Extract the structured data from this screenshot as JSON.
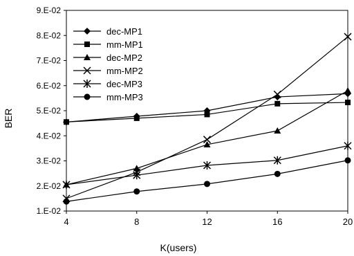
{
  "chart_data": {
    "type": "line",
    "title": "",
    "xlabel": "K(users)",
    "ylabel": "BER",
    "x": [
      4,
      8,
      12,
      16,
      20
    ],
    "x_ticks": [
      "4",
      "8",
      "12",
      "16",
      "20"
    ],
    "ylim": [
      0.01,
      0.09
    ],
    "y_ticks": [
      "1.E-02",
      "2.E-02",
      "3.E-02",
      "4.E-02",
      "5.E-02",
      "6.E-02",
      "7.E-02",
      "8.E-02",
      "9.E-02"
    ],
    "grid": false,
    "legend_position": "top-left",
    "series": [
      {
        "name": "dec-MP1",
        "marker": "diamond",
        "values": [
          0.0455,
          0.0478,
          0.05,
          0.0555,
          0.0568
        ]
      },
      {
        "name": "mm-MP1",
        "marker": "square",
        "values": [
          0.0455,
          0.047,
          0.0485,
          0.0528,
          0.0533
        ]
      },
      {
        "name": "dec-MP2",
        "marker": "triangle",
        "values": [
          0.0205,
          0.027,
          0.0365,
          0.042,
          0.058
        ]
      },
      {
        "name": "mm-MP2",
        "marker": "x",
        "values": [
          0.015,
          0.0255,
          0.0385,
          0.0565,
          0.0795
        ]
      },
      {
        "name": "dec-MP3",
        "marker": "star",
        "values": [
          0.0205,
          0.0243,
          0.0282,
          0.0302,
          0.036
        ]
      },
      {
        "name": "mm-MP3",
        "marker": "circle",
        "values": [
          0.0138,
          0.0178,
          0.0208,
          0.0248,
          0.0302
        ]
      }
    ]
  }
}
